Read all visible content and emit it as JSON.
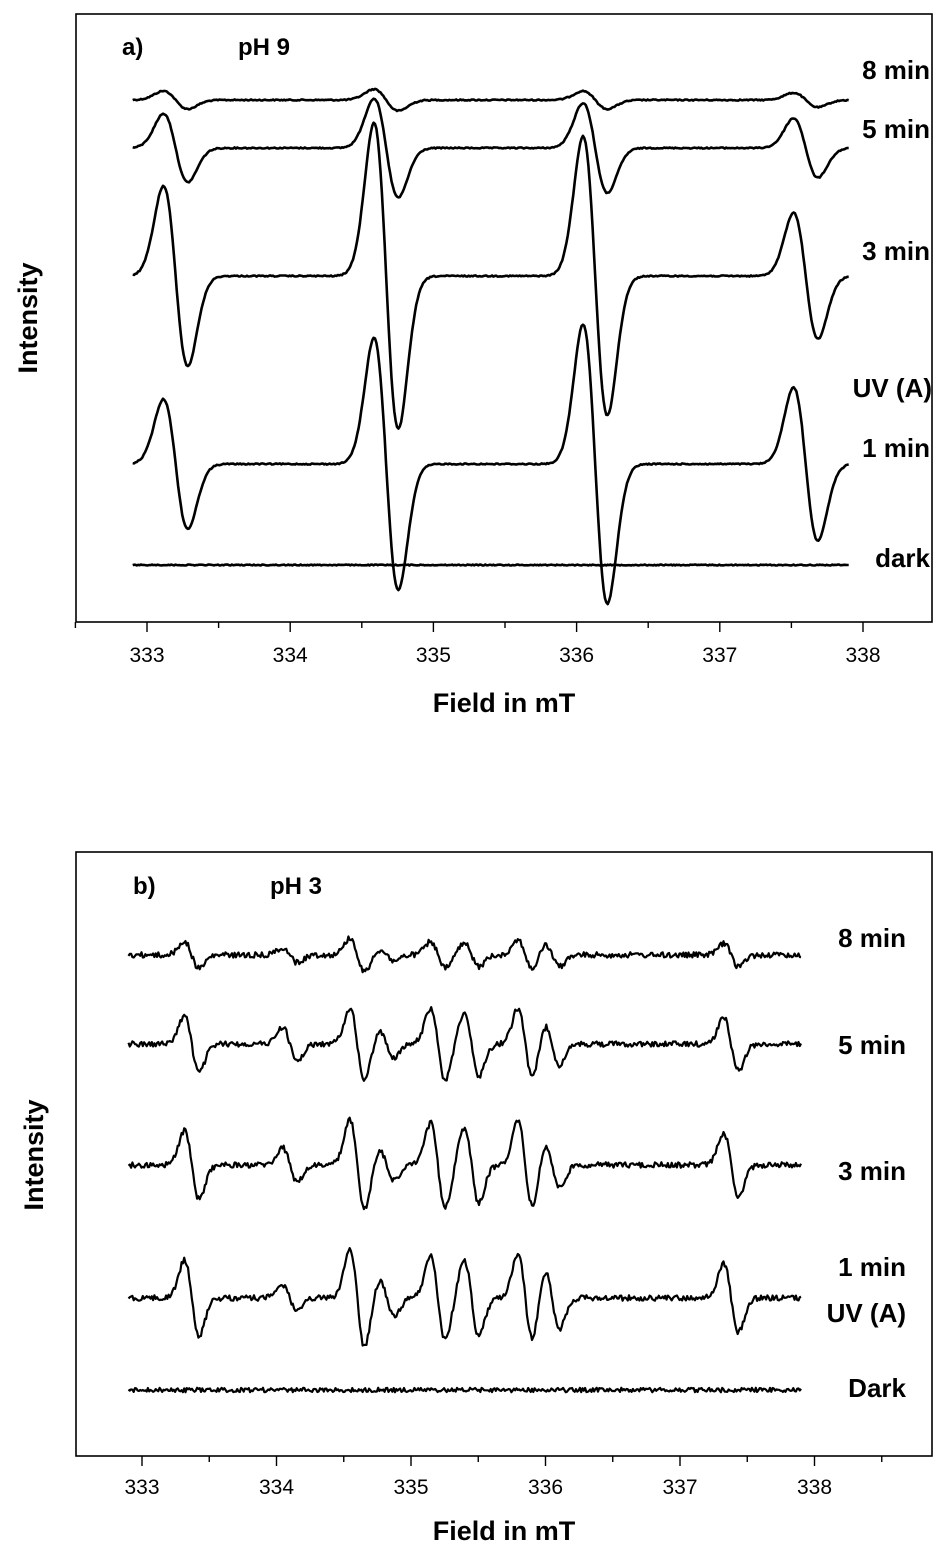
{
  "chart_data": [
    {
      "type": "line",
      "panel_label": "a)",
      "title": "pH 9",
      "xlabel": "Field in mT",
      "ylabel": "Intensity",
      "xlim": [
        332.5,
        338.5
      ],
      "xticks": [
        "333",
        "334",
        "335",
        "336",
        "337",
        "338"
      ],
      "x_range": [
        332.9,
        337.9
      ],
      "line_positions": [
        333.2,
        334.67,
        336.13,
        337.6
      ],
      "series": [
        {
          "label": "8 min",
          "line_amplitudes": [
            0.1,
            0.12,
            0.1,
            0.08
          ]
        },
        {
          "label": "5 min",
          "line_amplitudes": [
            0.38,
            0.55,
            0.5,
            0.33
          ]
        },
        {
          "label": "3 min",
          "line_amplitudes": [
            1.0,
            1.7,
            1.55,
            0.7
          ]
        },
        {
          "label": "1 min",
          "line_amplitudes": [
            0.72,
            1.4,
            1.55,
            0.85
          ]
        },
        {
          "label": "dark",
          "line_amplitudes": [
            0,
            0,
            0,
            0
          ]
        }
      ],
      "annotation": "UV (A)"
    },
    {
      "type": "line",
      "panel_label": "b)",
      "title": "pH 3",
      "xlabel": "Field in mT",
      "ylabel": "Intensity",
      "xlim": [
        332.5,
        338.5
      ],
      "xticks": [
        "333",
        "334",
        "335",
        "336",
        "337",
        "338"
      ],
      "x_range": [
        332.9,
        337.9
      ],
      "line_positions": [
        333.37,
        334.1,
        334.6,
        334.82,
        335.2,
        335.45,
        335.85,
        336.05,
        337.38
      ],
      "series": [
        {
          "label": "8 min",
          "line_amplitudes": [
            0.35,
            0.2,
            0.45,
            0.15,
            0.35,
            0.3,
            0.4,
            0.3,
            0.3
          ]
        },
        {
          "label": "5 min",
          "line_amplitudes": [
            0.75,
            0.45,
            0.95,
            0.35,
            0.95,
            0.85,
            0.95,
            0.55,
            0.7
          ]
        },
        {
          "label": "3 min",
          "line_amplitudes": [
            0.9,
            0.45,
            1.2,
            0.4,
            1.1,
            1.0,
            1.15,
            0.6,
            0.85
          ]
        },
        {
          "label": "1 min",
          "line_amplitudes": [
            1.0,
            0.35,
            1.3,
            0.5,
            1.1,
            1.0,
            1.15,
            0.8,
            0.9
          ]
        },
        {
          "label": "Dark",
          "line_amplitudes": [
            0,
            0,
            0,
            0,
            0,
            0,
            0,
            0,
            0
          ]
        }
      ],
      "annotation": "UV (A)"
    }
  ]
}
